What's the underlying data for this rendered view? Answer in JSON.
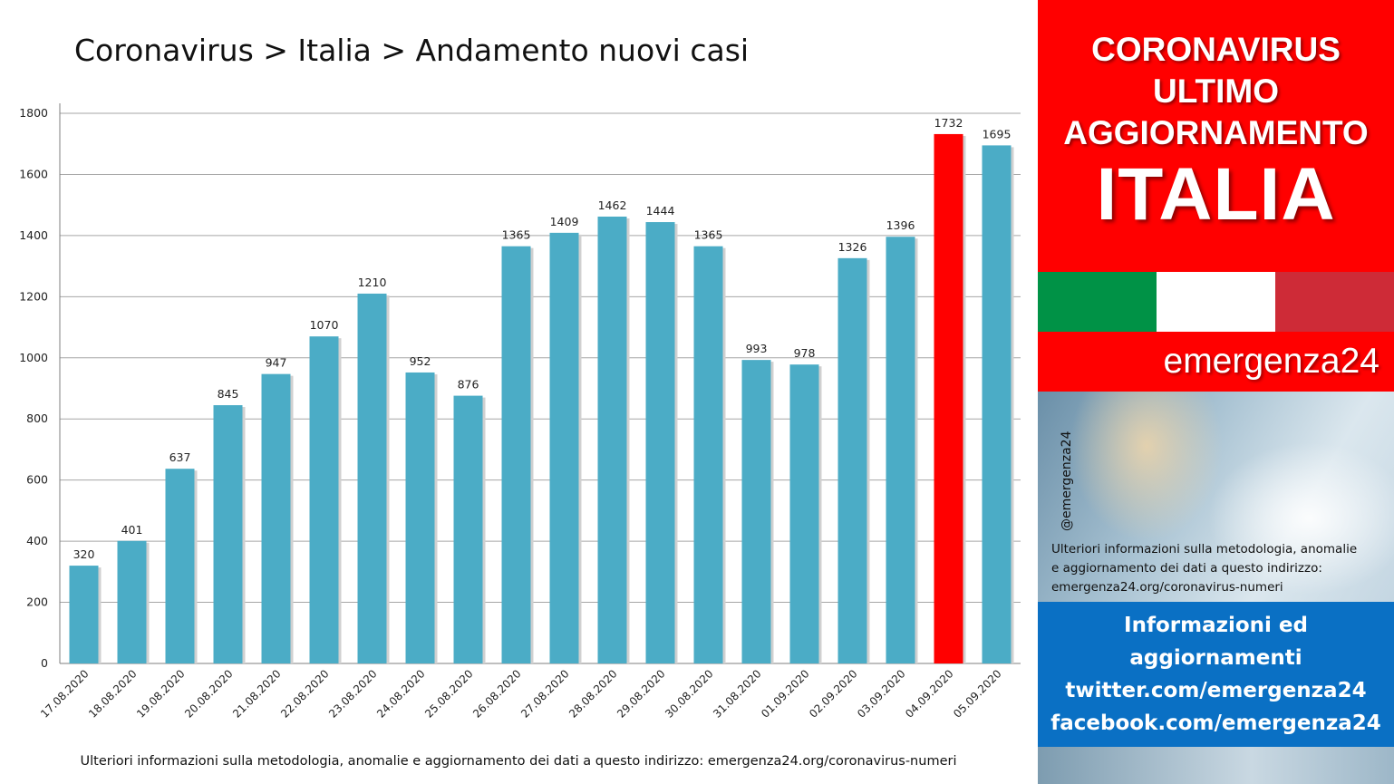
{
  "title": "Coronavirus > Italia > Andamento nuovi casi",
  "footnote": "Ulteriori informazioni sulla metodologia, anomalie e aggiornamento dei dati a questo indirizzo: emergenza24.org/coronavirus-numeri",
  "chart_data": {
    "type": "bar",
    "title": "Coronavirus > Italia > Andamento nuovi casi",
    "categories": [
      "17.08.2020",
      "18.08.2020",
      "19.08.2020",
      "20.08.2020",
      "21.08.2020",
      "22.08.2020",
      "23.08.2020",
      "24.08.2020",
      "25.08.2020",
      "26.08.2020",
      "27.08.2020",
      "28.08.2020",
      "29.08.2020",
      "30.08.2020",
      "31.08.2020",
      "01.09.2020",
      "02.09.2020",
      "03.09.2020",
      "04.09.2020",
      "05.09.2020"
    ],
    "values": [
      320,
      401,
      637,
      845,
      947,
      1070,
      1210,
      952,
      876,
      1365,
      1409,
      1462,
      1444,
      1365,
      993,
      978,
      1326,
      1396,
      1732,
      1695
    ],
    "ylim": [
      0,
      1800
    ],
    "yticks": [
      0,
      200,
      400,
      600,
      800,
      1000,
      1200,
      1400,
      1600,
      1800
    ],
    "grid": true,
    "bar_color": "#4bacc6",
    "highlight_color": "#ff0000",
    "highlight_index": 18
  },
  "panel": {
    "headline_lines": [
      "CORONAVIRUS",
      "ULTIMO",
      "AGGIORNAMENTO"
    ],
    "country": "ITALIA",
    "brand": "emergenza24",
    "handle": "@emergenza24",
    "info_lines": [
      "Ulteriori informazioni sulla metodologia, anomalie",
      "e aggiornamento dei dati a questo indirizzo:",
      "emergenza24.org/coronavirus-numeri"
    ],
    "social_lines": [
      "Informazioni ed",
      "aggiornamenti",
      "twitter.com/emergenza24",
      "facebook.com/emergenza24"
    ],
    "flag_colors": [
      "#009246",
      "#ffffff",
      "#ce2b37"
    ],
    "accent_red": "#ff0000",
    "accent_blue": "#0a70c4"
  }
}
